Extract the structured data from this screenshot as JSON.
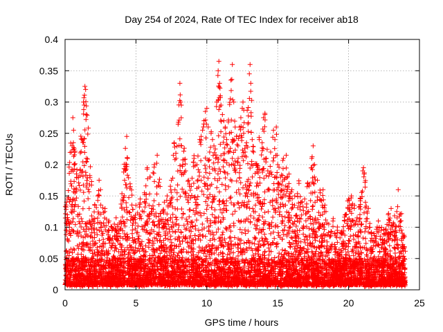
{
  "chart_data": {
    "type": "scatter",
    "title": "Day 254 of 2024, Rate Of TEC Index for receiver ab18",
    "xlabel": "GPS time / hours",
    "ylabel": "ROTI / TECUs",
    "xlim": [
      0,
      25
    ],
    "ylim": [
      0,
      0.4
    ],
    "xticks": [
      0,
      5,
      10,
      15,
      20,
      25
    ],
    "yticks": [
      0,
      0.05,
      0.1,
      0.15,
      0.2,
      0.25,
      0.3,
      0.35,
      0.4
    ],
    "xtick_labels": [
      "0",
      "5",
      "10",
      "15",
      "20",
      "25"
    ],
    "ytick_labels": [
      "0",
      "0.05",
      "0.1",
      "0.15",
      "0.2",
      "0.25",
      "0.3",
      "0.35",
      "0.4"
    ],
    "grid": true,
    "marker": "+",
    "color": "#ff0000",
    "series": [
      {
        "name": "ROTI",
        "points": [
          [
            0.1,
            0.14
          ],
          [
            0.15,
            0.12
          ],
          [
            0.2,
            0.145
          ],
          [
            0.3,
            0.1
          ],
          [
            0.45,
            0.22
          ],
          [
            0.5,
            0.23
          ],
          [
            0.55,
            0.275
          ],
          [
            0.6,
            0.255
          ],
          [
            0.65,
            0.225
          ],
          [
            0.8,
            0.16
          ],
          [
            0.9,
            0.12
          ],
          [
            1.2,
            0.24
          ],
          [
            1.3,
            0.3
          ],
          [
            1.35,
            0.295
          ],
          [
            1.4,
            0.325
          ],
          [
            1.45,
            0.32
          ],
          [
            1.5,
            0.28
          ],
          [
            1.5,
            0.21
          ],
          [
            1.55,
            0.17
          ],
          [
            1.7,
            0.13
          ],
          [
            1.9,
            0.11
          ],
          [
            2.1,
            0.135
          ],
          [
            2.3,
            0.15
          ],
          [
            2.4,
            0.175
          ],
          [
            2.5,
            0.16
          ],
          [
            2.8,
            0.125
          ],
          [
            3.1,
            0.11
          ],
          [
            3.3,
            0.1
          ],
          [
            3.6,
            0.115
          ],
          [
            3.8,
            0.09
          ],
          [
            4.0,
            0.13
          ],
          [
            4.2,
            0.175
          ],
          [
            4.35,
            0.245
          ],
          [
            4.4,
            0.21
          ],
          [
            4.6,
            0.165
          ],
          [
            5.0,
            0.135
          ],
          [
            5.3,
            0.145
          ],
          [
            5.6,
            0.155
          ],
          [
            5.8,
            0.195
          ],
          [
            6.0,
            0.18
          ],
          [
            6.3,
            0.2
          ],
          [
            6.5,
            0.215
          ],
          [
            6.7,
            0.165
          ],
          [
            7.0,
            0.14
          ],
          [
            7.2,
            0.15
          ],
          [
            7.4,
            0.135
          ],
          [
            7.5,
            0.175
          ],
          [
            7.7,
            0.235
          ],
          [
            7.9,
            0.155
          ],
          [
            8.1,
            0.33
          ],
          [
            8.15,
            0.3
          ],
          [
            8.2,
            0.295
          ],
          [
            8.3,
            0.2
          ],
          [
            8.5,
            0.19
          ],
          [
            8.7,
            0.175
          ],
          [
            8.9,
            0.165
          ],
          [
            9.1,
            0.21
          ],
          [
            9.3,
            0.2
          ],
          [
            9.5,
            0.24
          ],
          [
            9.6,
            0.245
          ],
          [
            9.7,
            0.255
          ],
          [
            9.8,
            0.27
          ],
          [
            9.9,
            0.285
          ],
          [
            10.0,
            0.29
          ],
          [
            10.1,
            0.26
          ],
          [
            10.2,
            0.22
          ],
          [
            10.3,
            0.25
          ],
          [
            10.4,
            0.24
          ],
          [
            10.5,
            0.23
          ],
          [
            10.6,
            0.225
          ],
          [
            10.7,
            0.3
          ],
          [
            10.8,
            0.35
          ],
          [
            10.85,
            0.365
          ],
          [
            10.9,
            0.33
          ],
          [
            10.95,
            0.31
          ],
          [
            11.0,
            0.295
          ],
          [
            11.1,
            0.28
          ],
          [
            11.2,
            0.27
          ],
          [
            11.3,
            0.26
          ],
          [
            11.4,
            0.24
          ],
          [
            11.5,
            0.22
          ],
          [
            11.6,
            0.25
          ],
          [
            11.7,
            0.335
          ],
          [
            11.8,
            0.36
          ],
          [
            11.9,
            0.3
          ],
          [
            12.0,
            0.26
          ],
          [
            12.1,
            0.245
          ],
          [
            12.2,
            0.23
          ],
          [
            12.3,
            0.26
          ],
          [
            12.4,
            0.275
          ],
          [
            12.5,
            0.29
          ],
          [
            12.55,
            0.3
          ],
          [
            12.6,
            0.25
          ],
          [
            12.7,
            0.22
          ],
          [
            12.8,
            0.235
          ],
          [
            12.9,
            0.265
          ],
          [
            13.0,
            0.345
          ],
          [
            13.05,
            0.36
          ],
          [
            13.1,
            0.33
          ],
          [
            13.2,
            0.24
          ],
          [
            13.3,
            0.22
          ],
          [
            13.5,
            0.2
          ],
          [
            13.7,
            0.24
          ],
          [
            13.9,
            0.235
          ],
          [
            14.0,
            0.275
          ],
          [
            14.1,
            0.28
          ],
          [
            14.2,
            0.21
          ],
          [
            14.3,
            0.19
          ],
          [
            14.5,
            0.22
          ],
          [
            14.7,
            0.255
          ],
          [
            14.8,
            0.24
          ],
          [
            14.9,
            0.26
          ],
          [
            15.0,
            0.2
          ],
          [
            15.2,
            0.18
          ],
          [
            15.4,
            0.21
          ],
          [
            15.6,
            0.215
          ],
          [
            15.8,
            0.185
          ],
          [
            16.0,
            0.16
          ],
          [
            16.2,
            0.15
          ],
          [
            16.5,
            0.17
          ],
          [
            16.7,
            0.14
          ],
          [
            16.9,
            0.145
          ],
          [
            17.1,
            0.17
          ],
          [
            17.4,
            0.21
          ],
          [
            17.5,
            0.23
          ],
          [
            17.6,
            0.2
          ],
          [
            17.8,
            0.175
          ],
          [
            18.0,
            0.155
          ],
          [
            18.2,
            0.16
          ],
          [
            18.4,
            0.125
          ],
          [
            18.6,
            0.105
          ],
          [
            18.9,
            0.11
          ],
          [
            19.2,
            0.095
          ],
          [
            19.5,
            0.09
          ],
          [
            19.8,
            0.12
          ],
          [
            20.0,
            0.145
          ],
          [
            20.2,
            0.15
          ],
          [
            20.4,
            0.13
          ],
          [
            20.6,
            0.115
          ],
          [
            20.8,
            0.12
          ],
          [
            21.0,
            0.19
          ],
          [
            21.05,
            0.195
          ],
          [
            21.1,
            0.185
          ],
          [
            21.3,
            0.125
          ],
          [
            21.5,
            0.1
          ],
          [
            21.8,
            0.09
          ],
          [
            22.1,
            0.11
          ],
          [
            22.3,
            0.095
          ],
          [
            22.5,
            0.09
          ],
          [
            22.8,
            0.12
          ],
          [
            23.0,
            0.13
          ],
          [
            23.2,
            0.105
          ],
          [
            23.4,
            0.125
          ],
          [
            23.5,
            0.16
          ],
          [
            23.6,
            0.095
          ],
          [
            23.8,
            0.07
          ],
          [
            23.95,
            0.05
          ]
        ]
      }
    ]
  }
}
